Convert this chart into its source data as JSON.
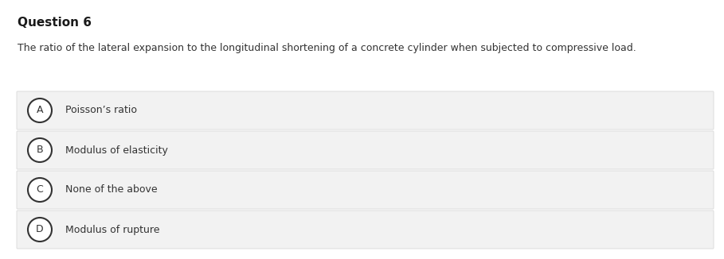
{
  "title": "Question 6",
  "question": "The ratio of the lateral expansion to the longitudinal shortening of a concrete cylinder when subjected to compressive load.",
  "options": [
    {
      "label": "A",
      "text": "Poisson’s ratio"
    },
    {
      "label": "B",
      "text": "Modulus of elasticity"
    },
    {
      "label": "C",
      "text": "None of the above"
    },
    {
      "label": "D",
      "text": "Modulus of rupture"
    }
  ],
  "bg_color": "#ffffff",
  "option_bg_color": "#f2f2f2",
  "option_border_color": "#d8d8d8",
  "title_color": "#1a1a1a",
  "question_color": "#333333",
  "option_text_color": "#333333",
  "circle_edge_color": "#333333",
  "circle_face_color": "#ffffff",
  "fig_width": 9.09,
  "fig_height": 3.26,
  "dpi": 100,
  "title_fontsize": 11,
  "question_fontsize": 9,
  "option_fontsize": 9,
  "label_fontsize": 9
}
